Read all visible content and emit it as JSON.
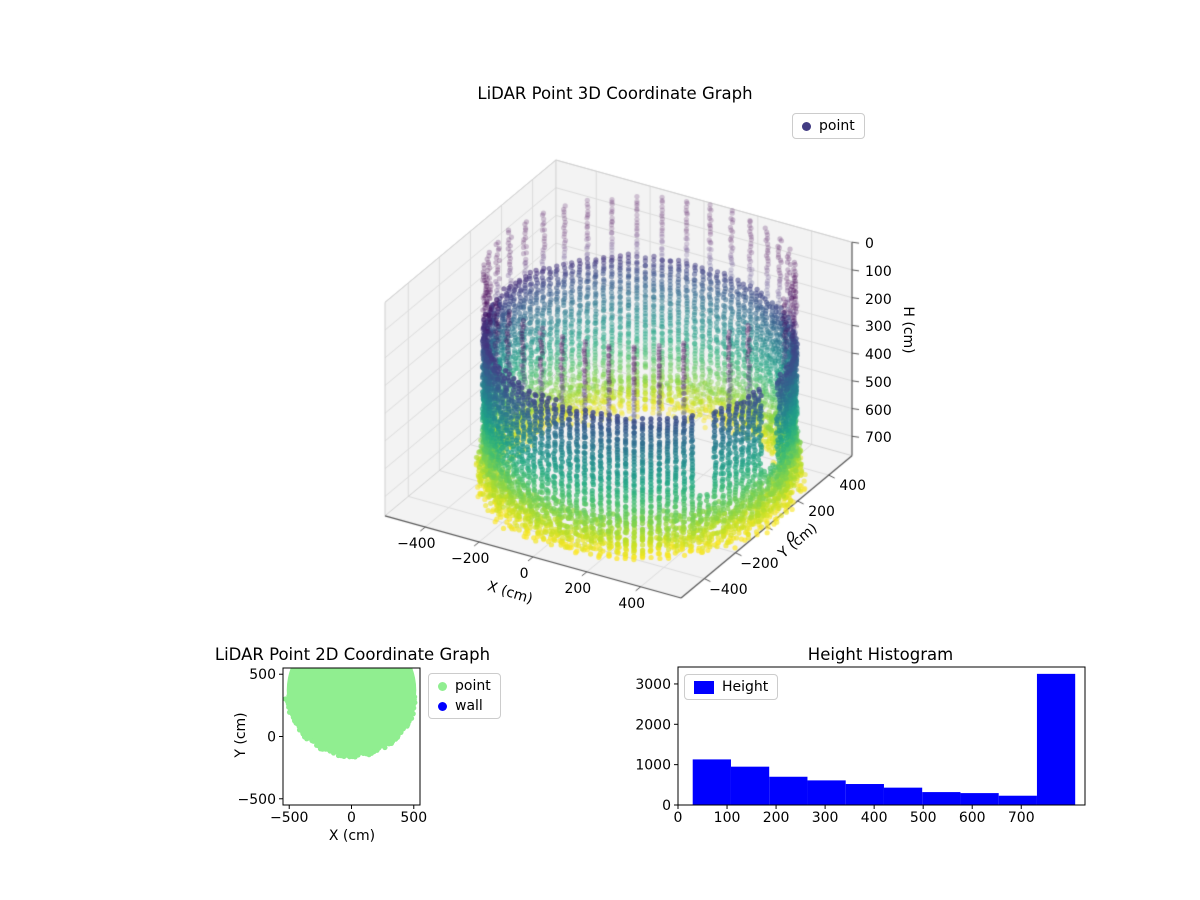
{
  "figure": {
    "background": "#ffffff"
  },
  "chart_data": [
    {
      "id": "lidar3d",
      "type": "scatter3d",
      "title": "LiDAR Point 3D Coordinate Graph",
      "xlabel": "X (cm)",
      "ylabel": "Y (cm)",
      "zlabel": "H (cm)",
      "xlim": [
        -550,
        550
      ],
      "ylim": [
        -550,
        550
      ],
      "zlim": [
        0,
        770
      ],
      "z_inverted": true,
      "xticks": {
        "values": [
          -400,
          -200,
          0,
          200,
          400
        ],
        "labels": [
          "−400",
          "−200",
          "0",
          "200",
          "400"
        ]
      },
      "yticks": {
        "values": [
          -400,
          -200,
          0,
          200,
          400
        ],
        "labels": [
          "−400",
          "−200",
          "0",
          "200",
          "400"
        ]
      },
      "zticks": {
        "values": [
          0,
          100,
          200,
          300,
          400,
          500,
          600,
          700
        ],
        "labels": [
          "0",
          "100",
          "200",
          "300",
          "400",
          "500",
          "600",
          "700"
        ]
      },
      "legend": [
        {
          "label": "point",
          "color": "#423c83"
        }
      ],
      "view": {
        "elev": 30,
        "azim": -60
      },
      "colormap": "viridis",
      "point_cloud": {
        "shape": "cylinder-wall",
        "center": [
          50,
          50
        ],
        "radius": 500,
        "height_range": [
          0,
          770
        ],
        "columns": 116,
        "row_step": 11,
        "sparse_top_band_max": 265,
        "sparse_every_nth_column": 3,
        "dense_bottom_from": 560,
        "extra_inner_points_from": 640,
        "gaps_deg": [
          [
            352,
            2
          ],
          [
            320,
            327
          ]
        ],
        "color_domain": [
          120,
          770
        ]
      }
    },
    {
      "id": "lidar2d",
      "type": "scatter",
      "title": "LiDAR Point 2D Coordinate Graph",
      "xlabel": "X (cm)",
      "ylabel": "Y (cm)",
      "xlim": [
        -550,
        550
      ],
      "ylim": [
        -550,
        550
      ],
      "xticks": {
        "values": [
          -500,
          0,
          500
        ],
        "labels": [
          "−500",
          "0",
          "500"
        ]
      },
      "yticks": {
        "values": [
          -500,
          0,
          500
        ],
        "labels": [
          "−500",
          "0",
          "500"
        ]
      },
      "legend": [
        {
          "label": "point",
          "color": "#90ee90"
        },
        {
          "label": "wall",
          "color": "#0000ff"
        }
      ],
      "region": {
        "shape": "disk",
        "center": [
          0,
          370
        ],
        "radius": 520,
        "color": "#90ee90"
      }
    },
    {
      "id": "height_histogram",
      "type": "bar",
      "title": "Height Histogram",
      "legend": [
        {
          "label": "Height",
          "color": "#0000ff"
        }
      ],
      "bar_color": "#0000ff",
      "bin_edges": [
        30,
        108,
        186,
        264,
        342,
        420,
        498,
        576,
        654,
        732,
        810
      ],
      "counts": [
        1130,
        950,
        700,
        610,
        520,
        430,
        320,
        295,
        230,
        3250
      ],
      "xticks": {
        "values": [
          0,
          100,
          200,
          300,
          400,
          500,
          600,
          700
        ],
        "labels": [
          "0",
          "100",
          "200",
          "300",
          "400",
          "500",
          "600",
          "700"
        ]
      },
      "yticks": {
        "values": [
          0,
          1000,
          2000,
          3000
        ],
        "labels": [
          "0",
          "1000",
          "2000",
          "3000"
        ]
      },
      "xlim": [
        0,
        830
      ],
      "ylim": [
        0,
        3420
      ]
    }
  ]
}
